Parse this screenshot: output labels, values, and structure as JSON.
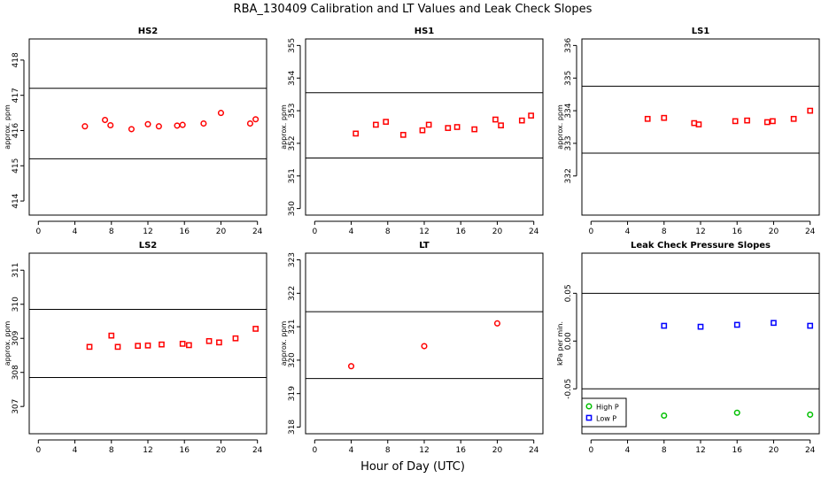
{
  "figure": {
    "title": "RBA_130409  Calibration and LT Values and Leak Check Slopes",
    "xlabel": "Hour of Day (UTC)"
  },
  "chart_data": [
    {
      "type": "scatter",
      "title": "HS2",
      "ylabel": "approx. ppm",
      "xlim": [
        -1,
        25
      ],
      "ylim": [
        413.6,
        418.6
      ],
      "xticks": [
        0,
        4,
        8,
        12,
        16,
        20,
        24
      ],
      "yticks": [
        414,
        415,
        416,
        417,
        418
      ],
      "hlines": [
        417.2,
        415.2
      ],
      "series": [
        {
          "color": "#ff0000",
          "marker": "circle",
          "points": [
            [
              5.1,
              416.12
            ],
            [
              7.3,
              416.3
            ],
            [
              7.9,
              416.15
            ],
            [
              10.2,
              416.04
            ],
            [
              12.0,
              416.18
            ],
            [
              13.2,
              416.12
            ],
            [
              15.2,
              416.14
            ],
            [
              15.8,
              416.16
            ],
            [
              18.1,
              416.2
            ],
            [
              20.0,
              416.5
            ],
            [
              23.2,
              416.2
            ],
            [
              23.8,
              416.32
            ]
          ]
        }
      ]
    },
    {
      "type": "scatter",
      "title": "HS1",
      "ylabel": "approx. ppm",
      "xlim": [
        -1,
        25
      ],
      "ylim": [
        349.8,
        355.2
      ],
      "xticks": [
        0,
        4,
        8,
        12,
        16,
        20,
        24
      ],
      "yticks": [
        350,
        351,
        352,
        353,
        354,
        355
      ],
      "hlines": [
        353.55,
        351.55
      ],
      "series": [
        {
          "color": "#ff0000",
          "marker": "square",
          "points": [
            [
              4.5,
              352.3
            ],
            [
              6.7,
              352.57
            ],
            [
              7.8,
              352.66
            ],
            [
              9.7,
              352.26
            ],
            [
              11.8,
              352.4
            ],
            [
              12.5,
              352.57
            ],
            [
              14.6,
              352.47
            ],
            [
              15.6,
              352.5
            ],
            [
              17.5,
              352.43
            ],
            [
              19.8,
              352.73
            ],
            [
              20.4,
              352.55
            ],
            [
              22.7,
              352.7
            ],
            [
              23.7,
              352.85
            ]
          ]
        }
      ]
    },
    {
      "type": "scatter",
      "title": "LS1",
      "ylabel": "approx. ppm",
      "xlim": [
        -1,
        25
      ],
      "ylim": [
        330.8,
        336.2
      ],
      "xticks": [
        0,
        4,
        8,
        12,
        16,
        20,
        24
      ],
      "yticks": [
        332,
        333,
        334,
        335,
        336
      ],
      "hlines": [
        334.75,
        332.7
      ],
      "series": [
        {
          "color": "#ff0000",
          "marker": "square",
          "points": [
            [
              6.2,
              333.75
            ],
            [
              8.0,
              333.78
            ],
            [
              11.3,
              333.62
            ],
            [
              11.8,
              333.58
            ],
            [
              15.8,
              333.68
            ],
            [
              17.1,
              333.7
            ],
            [
              19.3,
              333.65
            ],
            [
              19.9,
              333.68
            ],
            [
              22.2,
              333.75
            ],
            [
              24.0,
              334.0
            ]
          ]
        }
      ]
    },
    {
      "type": "scatter",
      "title": "LS2",
      "ylabel": "approx. ppm",
      "xlim": [
        -1,
        25
      ],
      "ylim": [
        306.2,
        311.5
      ],
      "xticks": [
        0,
        4,
        8,
        12,
        16,
        20,
        24
      ],
      "yticks": [
        307,
        308,
        309,
        310,
        311
      ],
      "hlines": [
        309.85,
        307.85
      ],
      "series": [
        {
          "color": "#ff0000",
          "marker": "square",
          "points": [
            [
              5.6,
              308.75
            ],
            [
              8.0,
              309.08
            ],
            [
              8.7,
              308.75
            ],
            [
              10.9,
              308.78
            ],
            [
              12.0,
              308.79
            ],
            [
              13.5,
              308.82
            ],
            [
              15.8,
              308.84
            ],
            [
              16.5,
              308.8
            ],
            [
              18.7,
              308.92
            ],
            [
              19.8,
              308.88
            ],
            [
              21.6,
              309.0
            ],
            [
              23.8,
              309.28
            ]
          ]
        }
      ]
    },
    {
      "type": "scatter",
      "title": "LT",
      "ylabel": "approx. ppm",
      "xlim": [
        -1,
        25
      ],
      "ylim": [
        317.8,
        323.2
      ],
      "xticks": [
        0,
        4,
        8,
        12,
        16,
        20,
        24
      ],
      "yticks": [
        318,
        319,
        320,
        321,
        322,
        323
      ],
      "hlines": [
        321.45,
        319.45
      ],
      "series": [
        {
          "color": "#ff0000",
          "marker": "circle",
          "points": [
            [
              4.0,
              319.82
            ],
            [
              12.0,
              320.42
            ],
            [
              20.0,
              321.1
            ]
          ]
        }
      ]
    },
    {
      "type": "scatter",
      "title": "Leak Check Pressure Slopes",
      "ylabel": "kPa per min.",
      "xlim": [
        -1,
        25
      ],
      "ylim": [
        -0.097,
        0.092
      ],
      "xticks": [
        0,
        4,
        8,
        12,
        16,
        20,
        24
      ],
      "yticks": [
        -0.05,
        0.0,
        0.05
      ],
      "ytick_labels": [
        "-0.05",
        "0.00",
        "0.05"
      ],
      "hlines": [
        0.05,
        -0.05
      ],
      "legend": {
        "position": "bottom-left"
      },
      "series": [
        {
          "name": "High P",
          "color": "#00c000",
          "marker": "circle",
          "points": [
            [
              8.0,
              -0.078
            ],
            [
              16.0,
              -0.075
            ],
            [
              24.0,
              -0.077
            ]
          ]
        },
        {
          "name": "Low P",
          "color": "#0000ff",
          "marker": "square",
          "points": [
            [
              8.0,
              0.016
            ],
            [
              12.0,
              0.015
            ],
            [
              16.0,
              0.017
            ],
            [
              20.0,
              0.019
            ],
            [
              24.0,
              0.016
            ]
          ]
        }
      ]
    }
  ]
}
